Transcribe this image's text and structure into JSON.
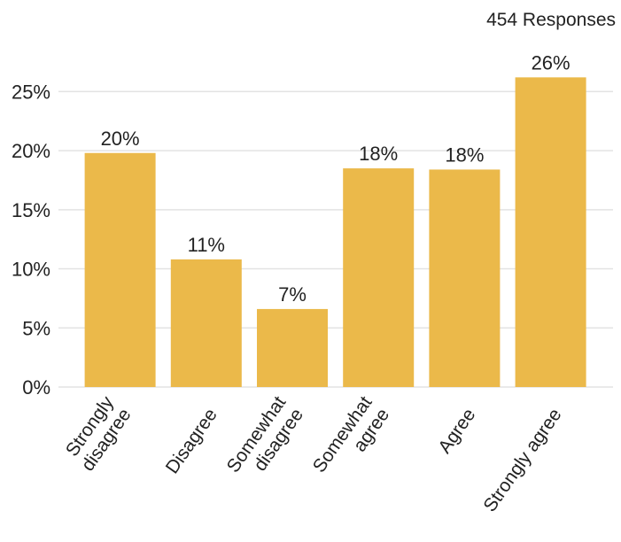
{
  "chart_data": {
    "type": "bar",
    "title": "",
    "xlabel": "",
    "ylabel": "",
    "note": "454 Responses",
    "categories": [
      [
        "Strongly",
        "disagree"
      ],
      [
        "Disagree"
      ],
      [
        "Somewhat",
        "disagree"
      ],
      [
        "Somewhat",
        "agree"
      ],
      [
        "Agree"
      ],
      [
        "Strongly agree"
      ]
    ],
    "values": [
      19.8,
      10.8,
      6.6,
      18.5,
      18.4,
      26.2
    ],
    "data_labels": [
      "20%",
      "11%",
      "7%",
      "18%",
      "18%",
      "26%"
    ],
    "y_ticks": [
      0,
      5,
      10,
      15,
      20,
      25
    ],
    "y_tick_labels": [
      "0%",
      "5%",
      "10%",
      "15%",
      "20%",
      "25%"
    ],
    "ylim": [
      0,
      27.5
    ],
    "grid": true,
    "legend": "none",
    "colors": {
      "bar": "#ebb94a",
      "grid": "#e3e3e3",
      "text": "#222222"
    }
  }
}
